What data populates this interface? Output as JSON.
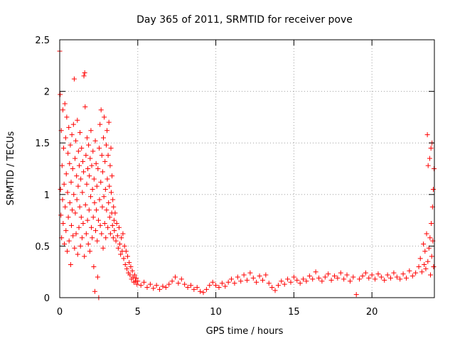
{
  "chart_data": {
    "type": "scatter",
    "title": "Day 365 of 2011, SRMTID for receiver pove",
    "xlabel": "GPS time / hours",
    "ylabel": "SRMTID / TECUs",
    "xlim": [
      0,
      24
    ],
    "ylim": [
      0,
      2.5
    ],
    "grid": true,
    "marker": "+",
    "color": "#ff0000",
    "x_ticks": [
      0,
      5,
      10,
      15,
      20
    ],
    "x_tick_labels": [
      "0",
      "5",
      "10",
      "15",
      "20"
    ],
    "y_ticks": [
      0,
      0.5,
      1,
      1.5,
      2,
      2.5
    ],
    "y_tick_labels": [
      "0",
      "0.5",
      "1",
      "1.5",
      "2",
      "2.5"
    ],
    "series": [
      {
        "name": "SRMTID",
        "points": [
          [
            0.0,
            2.39
          ],
          [
            0.03,
            1.97
          ],
          [
            0.05,
            1.05
          ],
          [
            0.08,
            0.8
          ],
          [
            0.1,
            1.62
          ],
          [
            0.12,
            0.58
          ],
          [
            0.15,
            1.28
          ],
          [
            0.18,
            0.95
          ],
          [
            0.2,
            1.82
          ],
          [
            0.22,
            0.72
          ],
          [
            0.25,
            1.45
          ],
          [
            0.28,
            1.1
          ],
          [
            0.3,
            0.52
          ],
          [
            0.33,
            1.88
          ],
          [
            0.35,
            0.88
          ],
          [
            0.38,
            1.55
          ],
          [
            0.4,
            0.65
          ],
          [
            0.42,
            1.2
          ],
          [
            0.45,
            1.75
          ],
          [
            0.48,
            0.45
          ],
          [
            0.5,
            1.02
          ],
          [
            0.53,
            1.4
          ],
          [
            0.55,
            0.78
          ],
          [
            0.58,
            1.65
          ],
          [
            0.6,
            0.55
          ],
          [
            0.63,
            1.3
          ],
          [
            0.65,
            0.92
          ],
          [
            0.68,
            1.48
          ],
          [
            0.7,
            0.32
          ],
          [
            0.73,
            1.12
          ],
          [
            0.75,
            0.7
          ],
          [
            0.78,
            1.58
          ],
          [
            0.8,
            0.85
          ],
          [
            0.83,
            1.25
          ],
          [
            0.85,
            0.6
          ],
          [
            0.88,
            1.68
          ],
          [
            0.9,
            1.0
          ],
          [
            0.93,
            2.12
          ],
          [
            0.95,
            0.48
          ],
          [
            0.98,
            1.35
          ],
          [
            1.0,
            0.82
          ],
          [
            1.03,
            1.52
          ],
          [
            1.05,
            0.62
          ],
          [
            1.08,
            1.18
          ],
          [
            1.1,
            0.95
          ],
          [
            1.13,
            1.72
          ],
          [
            1.15,
            0.42
          ],
          [
            1.18,
            1.08
          ],
          [
            1.2,
            1.42
          ],
          [
            1.23,
            0.68
          ],
          [
            1.25,
            1.28
          ],
          [
            1.28,
            0.88
          ],
          [
            1.3,
            1.6
          ],
          [
            1.33,
            0.5
          ],
          [
            1.35,
            1.15
          ],
          [
            1.38,
            0.78
          ],
          [
            1.4,
            1.45
          ],
          [
            1.43,
            0.58
          ],
          [
            1.45,
            1.02
          ],
          [
            1.48,
            1.32
          ],
          [
            1.5,
            0.72
          ],
          [
            1.53,
            1.22
          ],
          [
            1.55,
            2.15
          ],
          [
            1.58,
            0.4
          ],
          [
            1.6,
            2.18
          ],
          [
            1.63,
            1.85
          ],
          [
            1.65,
            0.9
          ],
          [
            1.68,
            1.38
          ],
          [
            1.7,
            0.62
          ],
          [
            1.73,
            1.1
          ],
          [
            1.75,
            1.55
          ],
          [
            1.78,
            0.75
          ],
          [
            1.8,
            1.25
          ],
          [
            1.83,
            0.52
          ],
          [
            1.85,
            1.48
          ],
          [
            1.88,
            0.85
          ],
          [
            1.9,
            1.18
          ],
          [
            1.93,
            0.45
          ],
          [
            1.95,
            1.35
          ],
          [
            1.98,
            0.98
          ],
          [
            2.0,
            1.62
          ],
          [
            2.03,
            0.68
          ],
          [
            2.05,
            1.28
          ],
          [
            2.08,
            0.58
          ],
          [
            2.1,
            1.05
          ],
          [
            2.13,
            1.42
          ],
          [
            2.15,
            0.78
          ],
          [
            2.18,
            0.3
          ],
          [
            2.2,
            1.15
          ],
          [
            2.23,
            0.92
          ],
          [
            2.25,
            0.06
          ],
          [
            2.28,
            1.52
          ],
          [
            2.3,
            0.65
          ],
          [
            2.33,
            1.3
          ],
          [
            2.35,
            0.85
          ],
          [
            2.38,
            1.08
          ],
          [
            2.4,
            0.55
          ],
          [
            2.43,
            0.2
          ],
          [
            2.45,
            1.25
          ],
          [
            2.48,
            0.75
          ],
          [
            2.5,
            0.0
          ],
          [
            2.53,
            1.45
          ],
          [
            2.55,
            0.95
          ],
          [
            2.58,
            1.68
          ],
          [
            2.6,
            0.7
          ],
          [
            2.63,
            1.12
          ],
          [
            2.65,
            1.82
          ],
          [
            2.68,
            0.62
          ],
          [
            2.7,
            1.38
          ],
          [
            2.73,
            0.88
          ],
          [
            2.75,
            1.22
          ],
          [
            2.78,
            0.48
          ],
          [
            2.8,
            1.55
          ],
          [
            2.83,
            0.98
          ],
          [
            2.85,
            1.75
          ],
          [
            2.88,
            0.72
          ],
          [
            2.9,
            1.32
          ],
          [
            2.93,
            1.05
          ],
          [
            2.95,
            0.58
          ],
          [
            2.98,
            1.48
          ],
          [
            3.0,
            0.85
          ],
          [
            3.03,
            1.62
          ],
          [
            3.05,
            1.15
          ],
          [
            3.08,
            0.68
          ],
          [
            3.1,
            1.38
          ],
          [
            3.13,
            0.92
          ],
          [
            3.15,
            1.7
          ],
          [
            3.18,
            1.08
          ],
          [
            3.2,
            0.78
          ],
          [
            3.23,
            1.28
          ],
          [
            3.25,
            0.62
          ],
          [
            3.28,
            1.45
          ],
          [
            3.3,
            1.02
          ],
          [
            3.33,
            0.82
          ],
          [
            3.35,
            1.18
          ],
          [
            3.38,
            0.7
          ],
          [
            3.4,
            0.95
          ],
          [
            3.43,
            0.58
          ],
          [
            3.45,
            0.88
          ],
          [
            3.48,
            0.75
          ],
          [
            3.5,
            0.65
          ],
          [
            3.55,
            0.82
          ],
          [
            3.6,
            0.55
          ],
          [
            3.65,
            0.72
          ],
          [
            3.7,
            0.6
          ],
          [
            3.75,
            0.48
          ],
          [
            3.8,
            0.68
          ],
          [
            3.85,
            0.52
          ],
          [
            3.9,
            0.42
          ],
          [
            3.95,
            0.58
          ],
          [
            4.0,
            0.45
          ],
          [
            4.05,
            0.62
          ],
          [
            4.1,
            0.38
          ],
          [
            4.15,
            0.5
          ],
          [
            4.2,
            0.32
          ],
          [
            4.25,
            0.45
          ],
          [
            4.3,
            0.28
          ],
          [
            4.35,
            0.4
          ],
          [
            4.4,
            0.24
          ],
          [
            4.45,
            0.34
          ],
          [
            4.5,
            0.22
          ],
          [
            4.55,
            0.3
          ],
          [
            4.6,
            0.18
          ],
          [
            4.65,
            0.26
          ],
          [
            4.7,
            0.2
          ],
          [
            4.75,
            0.15
          ],
          [
            4.8,
            0.22
          ],
          [
            4.85,
            0.16
          ],
          [
            4.9,
            0.19
          ],
          [
            4.95,
            0.13
          ],
          [
            5.0,
            0.16
          ],
          [
            5.2,
            0.12
          ],
          [
            5.4,
            0.15
          ],
          [
            5.6,
            0.1
          ],
          [
            5.8,
            0.13
          ],
          [
            6.0,
            0.09
          ],
          [
            6.2,
            0.12
          ],
          [
            6.4,
            0.08
          ],
          [
            6.6,
            0.11
          ],
          [
            6.8,
            0.1
          ],
          [
            7.0,
            0.13
          ],
          [
            7.2,
            0.16
          ],
          [
            7.4,
            0.2
          ],
          [
            7.6,
            0.14
          ],
          [
            7.8,
            0.18
          ],
          [
            8.0,
            0.13
          ],
          [
            8.2,
            0.1
          ],
          [
            8.4,
            0.12
          ],
          [
            8.6,
            0.08
          ],
          [
            8.8,
            0.1
          ],
          [
            9.0,
            0.06
          ],
          [
            9.2,
            0.05
          ],
          [
            9.4,
            0.08
          ],
          [
            9.6,
            0.12
          ],
          [
            9.8,
            0.15
          ],
          [
            10.0,
            0.12
          ],
          [
            10.2,
            0.1
          ],
          [
            10.4,
            0.14
          ],
          [
            10.6,
            0.11
          ],
          [
            10.8,
            0.15
          ],
          [
            11.0,
            0.18
          ],
          [
            11.2,
            0.14
          ],
          [
            11.4,
            0.2
          ],
          [
            11.6,
            0.16
          ],
          [
            11.8,
            0.22
          ],
          [
            12.0,
            0.17
          ],
          [
            12.2,
            0.24
          ],
          [
            12.4,
            0.19
          ],
          [
            12.6,
            0.15
          ],
          [
            12.8,
            0.21
          ],
          [
            13.0,
            0.17
          ],
          [
            13.2,
            0.22
          ],
          [
            13.4,
            0.14
          ],
          [
            13.6,
            0.1
          ],
          [
            13.8,
            0.07
          ],
          [
            14.0,
            0.12
          ],
          [
            14.2,
            0.16
          ],
          [
            14.4,
            0.13
          ],
          [
            14.6,
            0.18
          ],
          [
            14.8,
            0.15
          ],
          [
            15.0,
            0.2
          ],
          [
            15.2,
            0.17
          ],
          [
            15.4,
            0.14
          ],
          [
            15.6,
            0.18
          ],
          [
            15.8,
            0.16
          ],
          [
            16.0,
            0.21
          ],
          [
            16.2,
            0.18
          ],
          [
            16.4,
            0.25
          ],
          [
            16.6,
            0.19
          ],
          [
            16.8,
            0.16
          ],
          [
            17.0,
            0.2
          ],
          [
            17.2,
            0.23
          ],
          [
            17.4,
            0.17
          ],
          [
            17.6,
            0.21
          ],
          [
            17.8,
            0.19
          ],
          [
            18.0,
            0.24
          ],
          [
            18.2,
            0.18
          ],
          [
            18.4,
            0.22
          ],
          [
            18.6,
            0.16
          ],
          [
            18.8,
            0.2
          ],
          [
            19.0,
            0.03
          ],
          [
            19.2,
            0.18
          ],
          [
            19.4,
            0.21
          ],
          [
            19.6,
            0.24
          ],
          [
            19.8,
            0.19
          ],
          [
            20.0,
            0.22
          ],
          [
            20.2,
            0.18
          ],
          [
            20.4,
            0.23
          ],
          [
            20.6,
            0.2
          ],
          [
            20.8,
            0.17
          ],
          [
            21.0,
            0.22
          ],
          [
            21.2,
            0.19
          ],
          [
            21.4,
            0.24
          ],
          [
            21.6,
            0.2
          ],
          [
            21.8,
            0.18
          ],
          [
            22.0,
            0.23
          ],
          [
            22.2,
            0.19
          ],
          [
            22.4,
            0.26
          ],
          [
            22.6,
            0.21
          ],
          [
            22.8,
            0.24
          ],
          [
            23.0,
            0.3
          ],
          [
            23.1,
            0.38
          ],
          [
            23.2,
            0.25
          ],
          [
            23.3,
            0.52
          ],
          [
            23.35,
            0.32
          ],
          [
            23.4,
            0.45
          ],
          [
            23.45,
            0.28
          ],
          [
            23.5,
            0.62
          ],
          [
            23.55,
            1.58
          ],
          [
            23.58,
            0.35
          ],
          [
            23.6,
            1.28
          ],
          [
            23.65,
            0.48
          ],
          [
            23.7,
            1.35
          ],
          [
            23.72,
            0.58
          ],
          [
            23.75,
            0.22
          ],
          [
            23.78,
            1.45
          ],
          [
            23.8,
            0.72
          ],
          [
            23.83,
            0.4
          ],
          [
            23.85,
            1.5
          ],
          [
            23.88,
            0.88
          ],
          [
            23.9,
            0.55
          ],
          [
            23.93,
            1.05
          ],
          [
            23.95,
            0.3
          ],
          [
            23.98,
            1.25
          ]
        ]
      }
    ]
  }
}
